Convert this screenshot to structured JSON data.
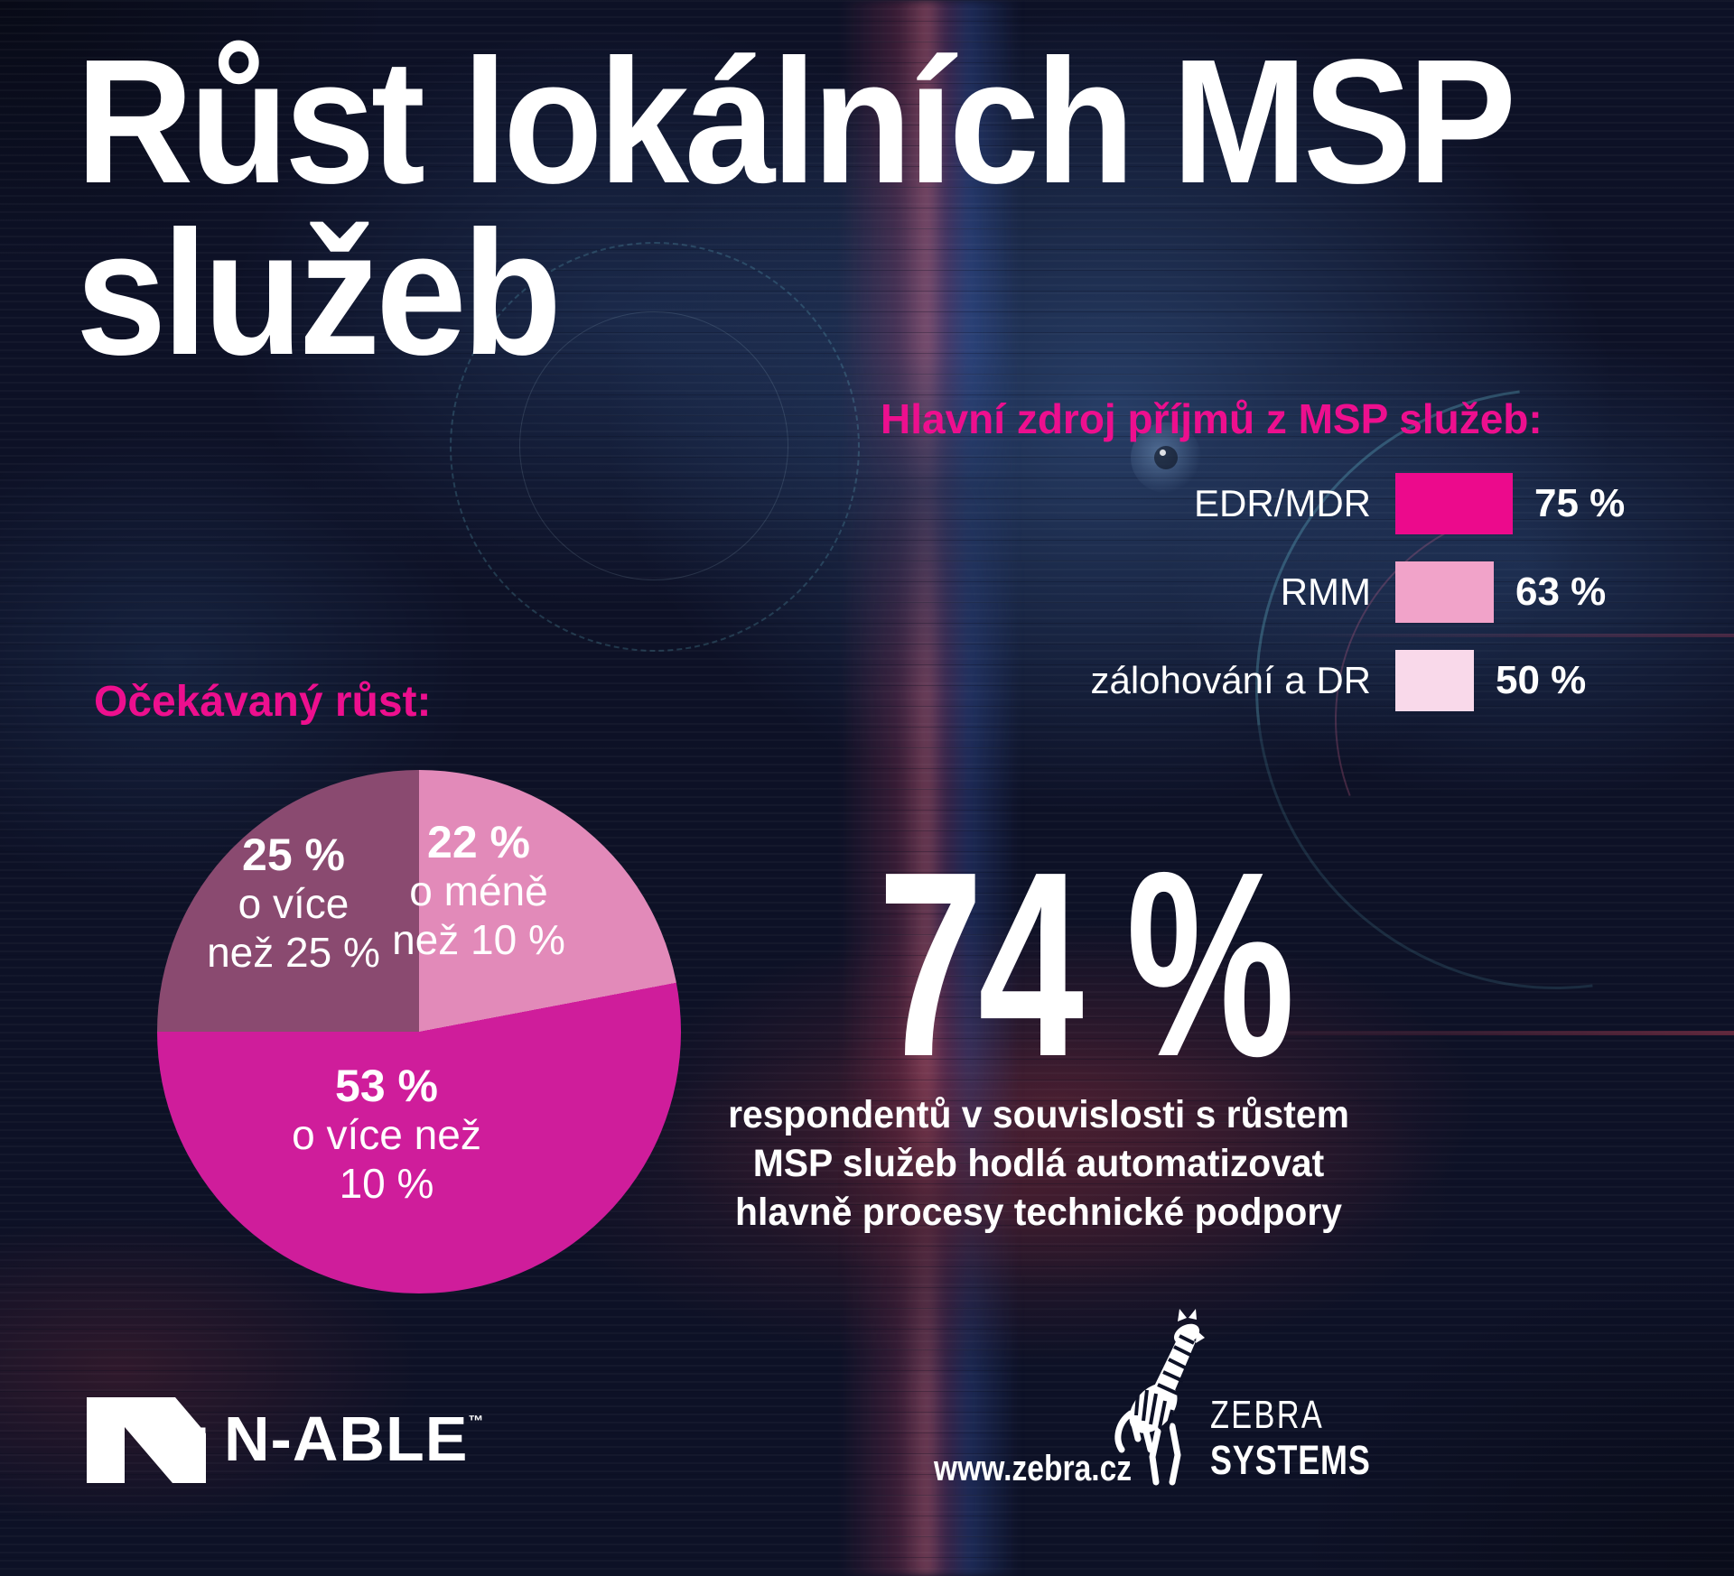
{
  "title": {
    "line1": "Růst lokálních MSP",
    "line2": "služeb"
  },
  "revenue_chart": {
    "heading": "Hlavní zdroj příjmů z MSP služeb:",
    "bars": [
      {
        "label": "EDR/MDR",
        "value": 75,
        "value_label": "75 %",
        "color": "#ec0a8c"
      },
      {
        "label": "RMM",
        "value": 63,
        "value_label": "63 %",
        "color": "#f1a3c9"
      },
      {
        "label": "zálohování a DR",
        "value": 50,
        "value_label": "50 %",
        "color": "#f9d9ea"
      }
    ]
  },
  "growth_chart": {
    "heading": "Očekávaný růst:",
    "segments": [
      {
        "value": 22,
        "color": "#e28ab9",
        "label_pct": "22 %",
        "label_l1": "o méně",
        "label_l2": "než 10 %"
      },
      {
        "value": 53,
        "color": "#cf1d9b",
        "label_pct": "53 %",
        "label_l1": "o více než",
        "label_l2": "10 %"
      },
      {
        "value": 25,
        "color": "#8a4a70",
        "label_pct": "25 %",
        "label_l1": "o více",
        "label_l2": "než 25 %"
      }
    ]
  },
  "highlight": {
    "big": "74 %",
    "line1": "respondentů v souvislosti s růstem",
    "line2": "MSP služeb hodlá automatizovat",
    "line3": "hlavně procesy technické podpory"
  },
  "footer": {
    "nable": "N-ABLE",
    "tm": "™",
    "url": "www.zebra.cz",
    "zebra_line1": "ZEBRA",
    "zebra_line2": "SYSTEMS"
  },
  "colors": {
    "accent_pink": "#ed0f8e",
    "background": "#0d1126",
    "text": "#ffffff"
  },
  "chart_data": [
    {
      "type": "bar",
      "orientation": "horizontal",
      "title": "Hlavní zdroj příjmů z MSP služeb:",
      "categories": [
        "EDR/MDR",
        "RMM",
        "zálohování a DR"
      ],
      "values": [
        75,
        63,
        50
      ],
      "unit": "%",
      "value_labels": [
        "75 %",
        "63 %",
        "50 %"
      ],
      "colors": [
        "#ec0a8c",
        "#f1a3c9",
        "#f9d9ea"
      ],
      "legend": false,
      "axis": false
    },
    {
      "type": "pie",
      "title": "Očekávaný růst:",
      "labels": [
        "o méně než 10 %",
        "o více než 10 %",
        "o více než 25 %"
      ],
      "values": [
        22,
        53,
        25
      ],
      "unit": "%",
      "colors": [
        "#e28ab9",
        "#cf1d9b",
        "#8a4a70"
      ],
      "start_angle_deg": 0,
      "direction": "clockwise",
      "annotation": "74 % respondentů v souvislosti s růstem MSP služeb hodlá automatizovat hlavně procesy technické podpory"
    }
  ]
}
